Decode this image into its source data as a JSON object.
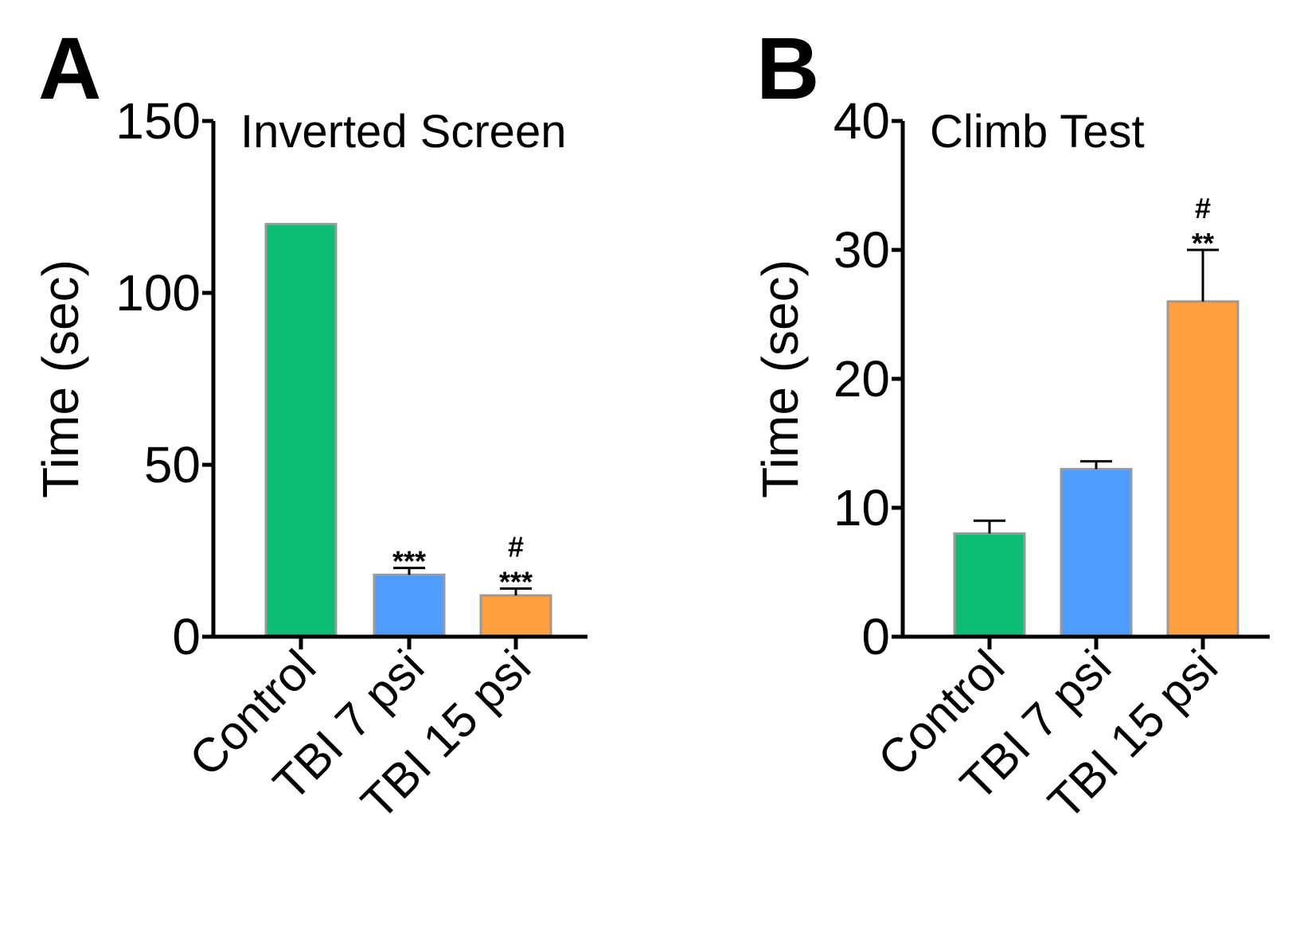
{
  "chart_data": [
    {
      "type": "bar",
      "panel": "A",
      "title": "Inverted Screen",
      "xlabel": "",
      "ylabel": "Time (sec)",
      "ylim": [
        0,
        150
      ],
      "yticks": [
        0,
        50,
        100,
        150
      ],
      "categories": [
        "Control",
        "TBI 7 psi",
        "TBI 15 psi"
      ],
      "values": [
        120,
        18,
        12
      ],
      "errors": [
        0,
        2,
        2
      ],
      "colors": [
        "#0dbd75",
        "#4f9cff",
        "#ff9f3d"
      ],
      "annotations": [
        [],
        [
          "***"
        ],
        [
          "#",
          "***"
        ]
      ]
    },
    {
      "type": "bar",
      "panel": "B",
      "title": "Climb Test",
      "xlabel": "",
      "ylabel": "Time (sec)",
      "ylim": [
        0,
        40
      ],
      "yticks": [
        0,
        10,
        20,
        30,
        40
      ],
      "categories": [
        "Control",
        "TBI 7 psi",
        "TBI 15 psi"
      ],
      "values": [
        8,
        13,
        26
      ],
      "errors": [
        1,
        0.6,
        4
      ],
      "colors": [
        "#0dbd75",
        "#4f9cff",
        "#ff9f3d"
      ],
      "annotations": [
        [],
        [],
        [
          "#",
          "**"
        ]
      ]
    }
  ]
}
